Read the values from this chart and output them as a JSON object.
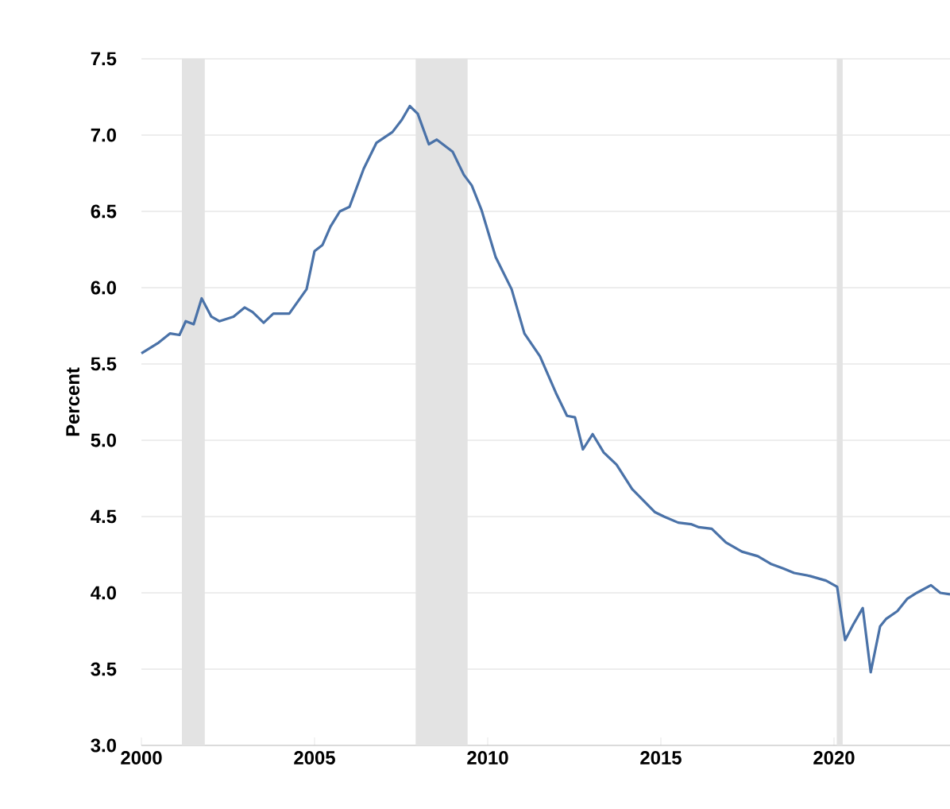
{
  "chart_data": {
    "type": "line",
    "ylabel": "Percent",
    "x": [
      2000.0,
      2000.5,
      2000.83,
      2001.1,
      2001.28,
      2001.51,
      2001.74,
      2002.02,
      2002.25,
      2002.66,
      2002.98,
      2003.21,
      2003.53,
      2003.81,
      2004.27,
      2004.77,
      2005.0,
      2005.23,
      2005.46,
      2005.73,
      2006.01,
      2006.42,
      2006.79,
      2007.25,
      2007.52,
      2007.75,
      2007.98,
      2008.3,
      2008.53,
      2008.99,
      2009.31,
      2009.54,
      2009.82,
      2010.23,
      2010.69,
      2011.06,
      2011.51,
      2011.97,
      2012.29,
      2012.52,
      2012.75,
      2013.03,
      2013.35,
      2013.72,
      2014.17,
      2014.82,
      2015.09,
      2015.5,
      2015.87,
      2016.1,
      2016.47,
      2016.88,
      2017.34,
      2017.8,
      2018.17,
      2018.53,
      2018.85,
      2019.31,
      2019.77,
      2020.09,
      2020.32,
      2020.55,
      2020.83,
      2021.06,
      2021.33,
      2021.51,
      2021.83,
      2022.11,
      2022.39,
      2022.8,
      2023.07,
      2023.35
    ],
    "series": [
      {
        "color": "#4a72a8",
        "values": [
          5.57,
          5.64,
          5.7,
          5.69,
          5.78,
          5.76,
          5.93,
          5.81,
          5.78,
          5.81,
          5.87,
          5.84,
          5.77,
          5.83,
          5.83,
          5.99,
          6.24,
          6.28,
          6.4,
          6.5,
          6.53,
          6.78,
          6.95,
          7.02,
          7.1,
          7.19,
          7.14,
          6.94,
          6.97,
          6.89,
          6.74,
          6.67,
          6.51,
          6.2,
          5.99,
          5.7,
          5.55,
          5.31,
          5.16,
          5.15,
          4.94,
          5.04,
          4.92,
          4.84,
          4.68,
          4.53,
          4.5,
          4.46,
          4.45,
          4.43,
          4.42,
          4.33,
          4.27,
          4.24,
          4.19,
          4.16,
          4.13,
          4.11,
          4.08,
          4.04,
          3.69,
          3.79,
          3.9,
          3.48,
          3.78,
          3.83,
          3.88,
          3.96,
          4.0,
          4.05,
          4.0,
          3.99
        ]
      }
    ],
    "xlim": [
      2000,
      2023.35
    ],
    "xticks": [
      2000,
      2005,
      2010,
      2015,
      2020
    ],
    "ylim": [
      3,
      7.5
    ],
    "yticks": [
      {
        "value": 3,
        "label": "3.0"
      },
      3.5,
      {
        "value": 4,
        "label": "4.0"
      },
      4.5,
      {
        "value": 5,
        "label": "5.0"
      },
      5.5,
      {
        "value": 6,
        "label": "6.0"
      },
      6.5,
      {
        "value": 7,
        "label": "7.0"
      },
      7.5
    ],
    "bands": [
      {
        "axis": "x",
        "from": 2001.17,
        "to": 2001.83,
        "color": "#e3e3e3"
      },
      {
        "axis": "x",
        "from": 2007.92,
        "to": 2009.42,
        "color": "#e3e3e3"
      },
      {
        "axis": "x",
        "from": 2020.08,
        "to": 2020.25,
        "color": "#e3e3e3"
      }
    ],
    "grid": "y",
    "marker": "none",
    "line_style": "solid"
  }
}
